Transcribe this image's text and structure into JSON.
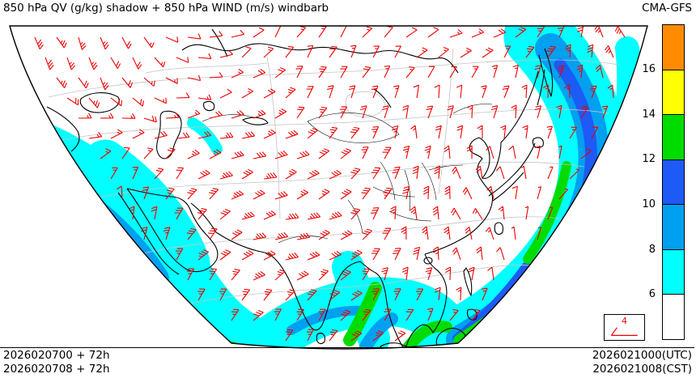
{
  "header": {
    "title": "850 hPa QV (g/kg) shadow + 850 hPa WIND (m/s) windbarb",
    "model": "CMA-GFS"
  },
  "colorbar": {
    "labels": [
      "16",
      "14",
      "12",
      "10",
      "8",
      "6"
    ],
    "colors_top_to_bottom": [
      "#FF8C00",
      "#FFFF00",
      "#00DC00",
      "#1E5AF5",
      "#00A0F0",
      "#00FFFF",
      "#FFFFFF"
    ]
  },
  "barb_legend": {
    "value": "4"
  },
  "map": {
    "barb_color": "#EE0000",
    "coast_color": "#000000",
    "contour_color": "#C3C3C3",
    "shade_colors": {
      "qv6": "#00FFFF",
      "qv8": "#00A0F0",
      "qv10": "#1E5AF5",
      "qv12": "#00DC00"
    }
  },
  "footer": {
    "left_lines": [
      "2026020700 + 72h",
      "2026020708 + 72h"
    ],
    "right_lines": [
      "2026021000(UTC)",
      "2026021008(CST)"
    ]
  }
}
